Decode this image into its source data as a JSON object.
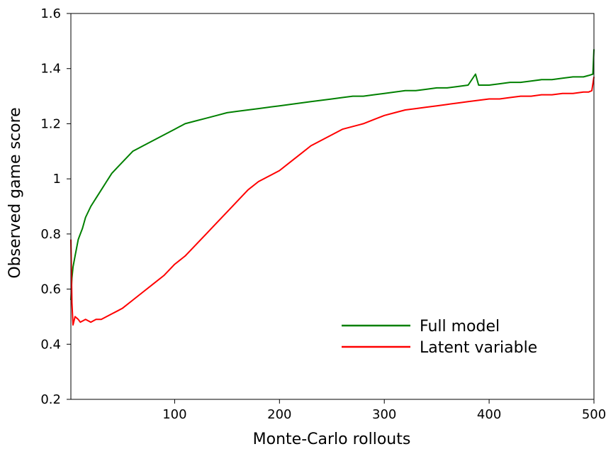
{
  "chart_data": {
    "type": "line",
    "title": "",
    "xlabel": "Monte-Carlo rollouts",
    "ylabel": "Observed game score",
    "xlim": [
      1,
      500
    ],
    "ylim": [
      0.2,
      1.6
    ],
    "xticks": [
      100,
      200,
      300,
      400,
      500
    ],
    "yticks": [
      0.2,
      0.4,
      0.6,
      0.8,
      1,
      1.2,
      1.4,
      1.6
    ],
    "ytick_labels": [
      "0.2",
      "0.4",
      "0.6",
      "0.8",
      "1",
      "1.2",
      "1.4",
      "1.6"
    ],
    "grid": false,
    "legend_position": "bottom-right",
    "series": [
      {
        "name": "Full model",
        "color": "#008000",
        "x": [
          1,
          2,
          3,
          5,
          8,
          10,
          12,
          15,
          20,
          25,
          30,
          35,
          40,
          45,
          50,
          55,
          60,
          65,
          70,
          75,
          80,
          85,
          90,
          95,
          100,
          110,
          120,
          130,
          140,
          150,
          160,
          170,
          180,
          190,
          200,
          210,
          220,
          230,
          240,
          250,
          260,
          270,
          280,
          290,
          300,
          310,
          320,
          330,
          340,
          350,
          360,
          370,
          380,
          387,
          390,
          400,
          410,
          420,
          430,
          440,
          450,
          460,
          470,
          480,
          490,
          495,
          499,
          500
        ],
        "y": [
          0.56,
          0.64,
          0.68,
          0.72,
          0.78,
          0.8,
          0.82,
          0.86,
          0.9,
          0.93,
          0.96,
          0.99,
          1.02,
          1.04,
          1.06,
          1.08,
          1.1,
          1.11,
          1.12,
          1.13,
          1.14,
          1.15,
          1.16,
          1.17,
          1.18,
          1.2,
          1.21,
          1.22,
          1.23,
          1.24,
          1.245,
          1.25,
          1.255,
          1.26,
          1.265,
          1.27,
          1.275,
          1.28,
          1.285,
          1.29,
          1.295,
          1.3,
          1.3,
          1.305,
          1.31,
          1.315,
          1.32,
          1.32,
          1.325,
          1.33,
          1.33,
          1.335,
          1.34,
          1.38,
          1.34,
          1.34,
          1.345,
          1.35,
          1.35,
          1.355,
          1.36,
          1.36,
          1.365,
          1.37,
          1.37,
          1.375,
          1.38,
          1.47
        ]
      },
      {
        "name": "Latent variable",
        "color": "#ff0000",
        "x": [
          1,
          2,
          3,
          5,
          8,
          10,
          15,
          20,
          25,
          30,
          35,
          40,
          45,
          50,
          60,
          70,
          80,
          90,
          100,
          110,
          120,
          130,
          140,
          150,
          160,
          170,
          180,
          190,
          200,
          210,
          220,
          230,
          240,
          250,
          260,
          270,
          280,
          290,
          300,
          310,
          320,
          330,
          340,
          350,
          360,
          370,
          380,
          390,
          400,
          410,
          420,
          430,
          440,
          450,
          460,
          470,
          480,
          490,
          495,
          498,
          500
        ],
        "y": [
          0.78,
          0.55,
          0.47,
          0.5,
          0.49,
          0.48,
          0.49,
          0.48,
          0.49,
          0.49,
          0.5,
          0.51,
          0.52,
          0.53,
          0.56,
          0.59,
          0.62,
          0.65,
          0.69,
          0.72,
          0.76,
          0.8,
          0.84,
          0.88,
          0.92,
          0.96,
          0.99,
          1.01,
          1.03,
          1.06,
          1.09,
          1.12,
          1.14,
          1.16,
          1.18,
          1.19,
          1.2,
          1.215,
          1.23,
          1.24,
          1.25,
          1.255,
          1.26,
          1.265,
          1.27,
          1.275,
          1.28,
          1.285,
          1.29,
          1.29,
          1.295,
          1.3,
          1.3,
          1.305,
          1.305,
          1.31,
          1.31,
          1.315,
          1.315,
          1.32,
          1.37
        ]
      }
    ]
  }
}
